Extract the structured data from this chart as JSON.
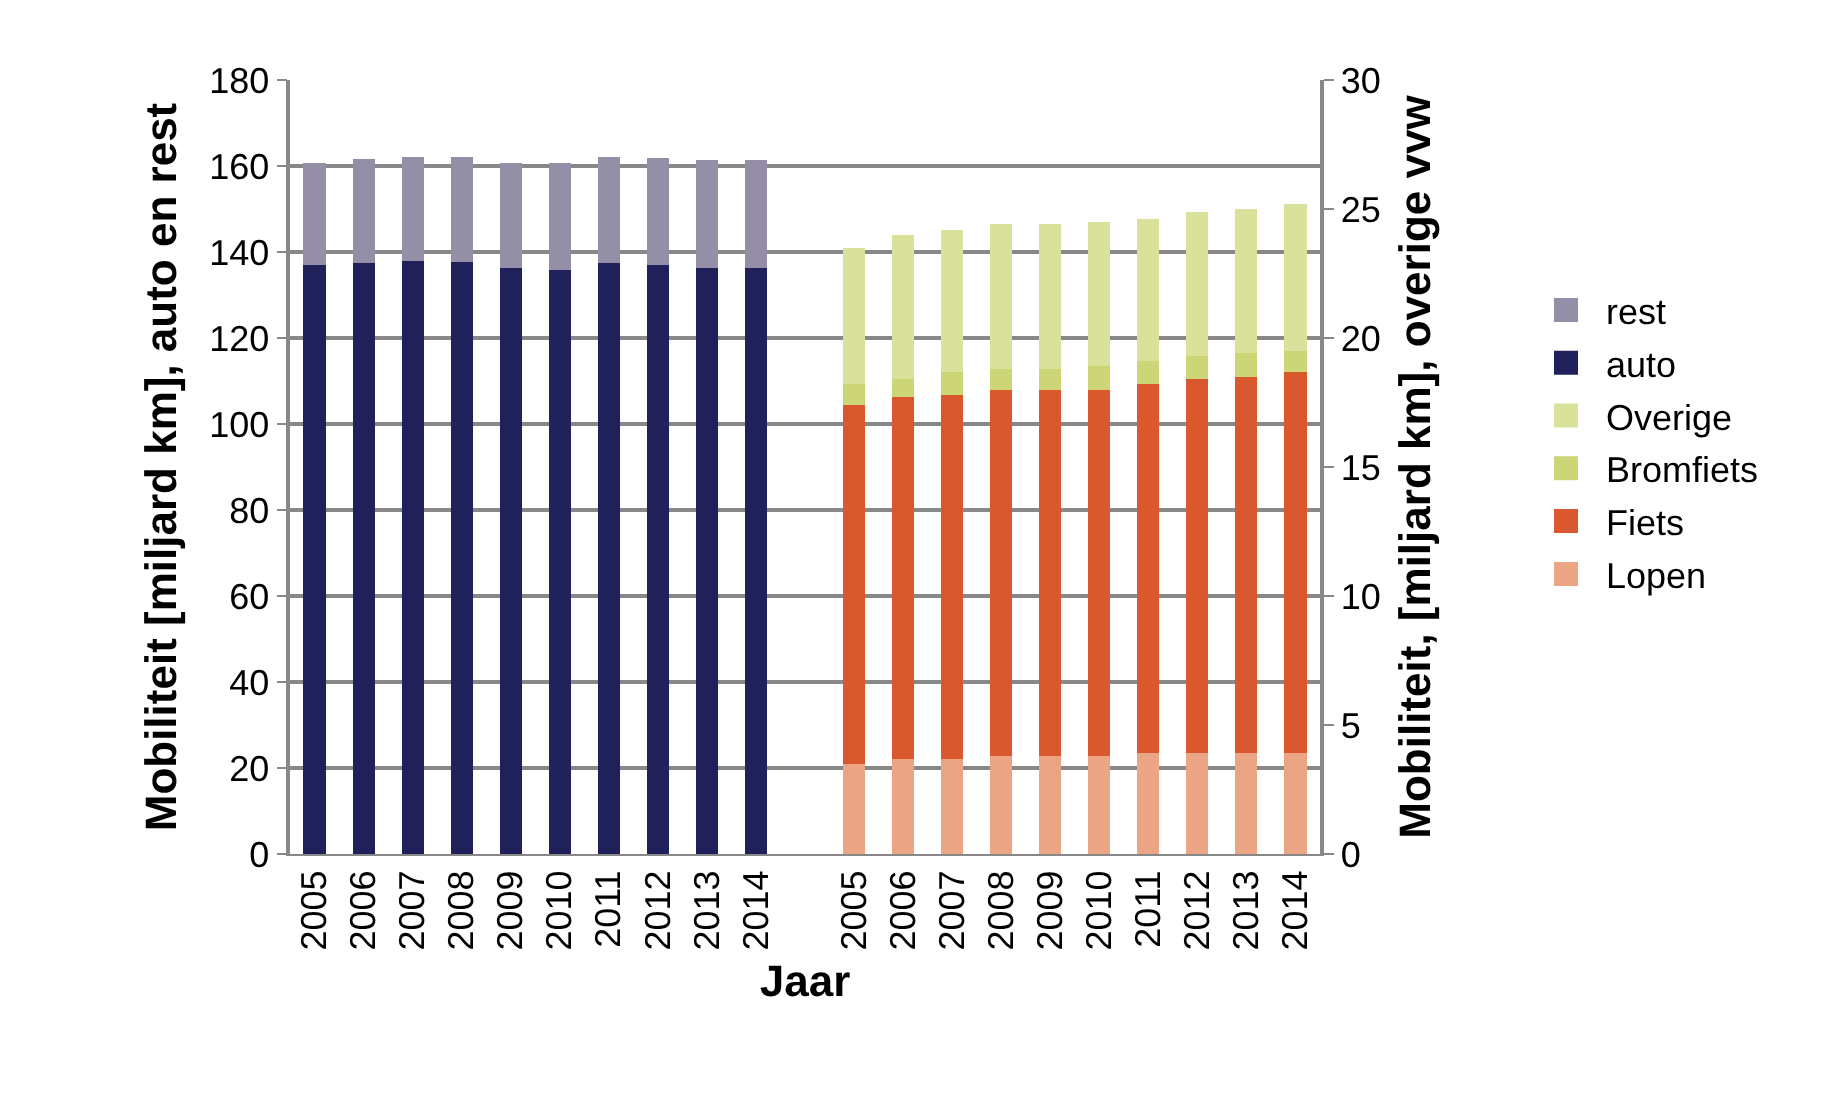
{
  "chart_data": {
    "type": "bar",
    "stacked": true,
    "xlabel": "Jaar",
    "ylabel": "Mobiliteit [miljard km], auto en rest",
    "y2label": "Mobiliteit, [miljard km], overige vvw",
    "categories": [
      "2005",
      "2006",
      "2007",
      "2008",
      "2009",
      "2010",
      "2011",
      "2012",
      "2013",
      "2014",
      null,
      "2005",
      "2006",
      "2007",
      "2008",
      "2009",
      "2010",
      "2011",
      "2012",
      "2013",
      "2014"
    ],
    "series": [
      {
        "name": "Lopen",
        "color": "#eba584",
        "axis": "y2",
        "values": [
          null,
          null,
          null,
          null,
          null,
          null,
          null,
          null,
          null,
          null,
          null,
          3.5,
          3.7,
          3.7,
          3.8,
          3.8,
          3.8,
          3.9,
          3.9,
          3.9,
          3.9
        ]
      },
      {
        "name": "Fiets",
        "color": "#d9582d",
        "axis": "y2",
        "values": [
          null,
          null,
          null,
          null,
          null,
          null,
          null,
          null,
          null,
          null,
          null,
          13.9,
          14.0,
          14.1,
          14.2,
          14.2,
          14.2,
          14.3,
          14.5,
          14.6,
          14.8
        ]
      },
      {
        "name": "Bromfiets",
        "color": "#cdd677",
        "axis": "y2",
        "values": [
          null,
          null,
          null,
          null,
          null,
          null,
          null,
          null,
          null,
          null,
          null,
          0.8,
          0.7,
          0.9,
          0.8,
          0.8,
          0.9,
          0.9,
          0.9,
          0.9,
          0.8
        ]
      },
      {
        "name": "Overige",
        "color": "#d9e19b",
        "axis": "y2",
        "values": [
          null,
          null,
          null,
          null,
          null,
          null,
          null,
          null,
          null,
          null,
          null,
          5.3,
          5.6,
          5.5,
          5.6,
          5.6,
          5.6,
          5.5,
          5.6,
          5.6,
          5.7
        ]
      },
      {
        "name": "auto",
        "color": "#20215a",
        "axis": "y",
        "values": [
          136.9,
          137.4,
          138.0,
          137.7,
          136.3,
          135.8,
          137.5,
          136.9,
          136.3,
          136.3,
          null,
          null,
          null,
          null,
          null,
          null,
          null,
          null,
          null,
          null,
          null
        ]
      },
      {
        "name": "rest",
        "color": "#948fa7",
        "axis": "y",
        "values": [
          23.8,
          24.2,
          24.2,
          24.5,
          24.5,
          24.9,
          24.7,
          25.0,
          25.0,
          25.1,
          null,
          null,
          null,
          null,
          null,
          null,
          null,
          null,
          null,
          null,
          null
        ]
      }
    ],
    "ylim": [
      0,
      180
    ],
    "yticks": [
      0,
      20,
      40,
      60,
      80,
      100,
      120,
      140,
      160,
      180
    ],
    "y2lim": [
      0,
      30
    ],
    "y2ticks": [
      0,
      5,
      10,
      15,
      20,
      25,
      30
    ],
    "grid": "y",
    "legend": "right"
  }
}
